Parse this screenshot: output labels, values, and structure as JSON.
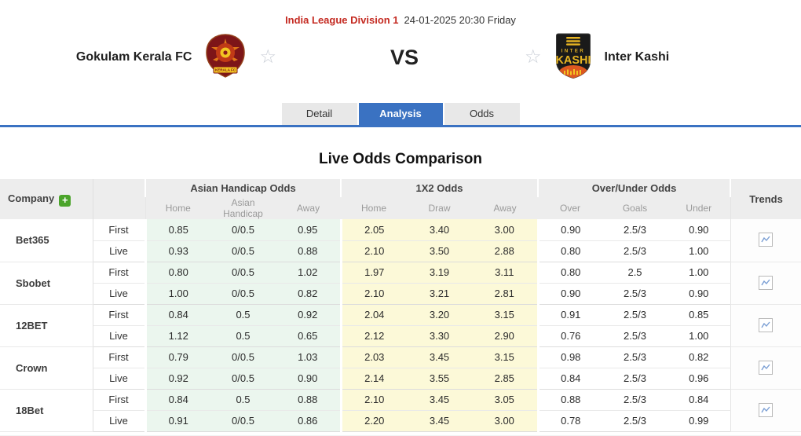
{
  "header": {
    "league": "India League Division 1",
    "datetime": "24-01-2025 20:30 Friday",
    "home_team": "Gokulam Kerala FC",
    "away_team": "Inter Kashi",
    "vs_label": "VS",
    "home_logo_text": "KERALA FC",
    "away_logo_line1": "INTER",
    "away_logo_line2": "KASHI"
  },
  "tabs": [
    {
      "label": "Detail",
      "active": false
    },
    {
      "label": "Analysis",
      "active": true
    },
    {
      "label": "Odds",
      "active": false
    }
  ],
  "section_title": "Live Odds Comparison",
  "odds_table": {
    "company_header": "Company",
    "add_company_label": "+",
    "trends_header": "Trends",
    "trends_icon": "line-chart",
    "row_types": [
      "First",
      "Live"
    ],
    "groups": [
      {
        "label": "Asian Handicap Odds",
        "columns": [
          "Home",
          "Asian Handicap",
          "Away"
        ]
      },
      {
        "label": "1X2 Odds",
        "columns": [
          "Home",
          "Draw",
          "Away"
        ]
      },
      {
        "label": "Over/Under Odds",
        "columns": [
          "Over",
          "Goals",
          "Under"
        ]
      }
    ],
    "companies": [
      {
        "name": "Bet365",
        "first": {
          "asian_handicap": [
            "0.85",
            "0/0.5",
            "0.95"
          ],
          "x12": [
            "2.05",
            "3.40",
            "3.00"
          ],
          "over_under": [
            "0.90",
            "2.5/3",
            "0.90"
          ]
        },
        "live": {
          "asian_handicap": [
            "0.93",
            "0/0.5",
            "0.88"
          ],
          "x12": [
            "2.10",
            "3.50",
            "2.88"
          ],
          "over_under": [
            "0.80",
            "2.5/3",
            "1.00"
          ]
        }
      },
      {
        "name": "Sbobet",
        "first": {
          "asian_handicap": [
            "0.80",
            "0/0.5",
            "1.02"
          ],
          "x12": [
            "1.97",
            "3.19",
            "3.11"
          ],
          "over_under": [
            "0.80",
            "2.5",
            "1.00"
          ]
        },
        "live": {
          "asian_handicap": [
            "1.00",
            "0/0.5",
            "0.82"
          ],
          "x12": [
            "2.10",
            "3.21",
            "2.81"
          ],
          "over_under": [
            "0.90",
            "2.5/3",
            "0.90"
          ]
        }
      },
      {
        "name": "12BET",
        "first": {
          "asian_handicap": [
            "0.84",
            "0.5",
            "0.92"
          ],
          "x12": [
            "2.04",
            "3.20",
            "3.15"
          ],
          "over_under": [
            "0.91",
            "2.5/3",
            "0.85"
          ]
        },
        "live": {
          "asian_handicap": [
            "1.12",
            "0.5",
            "0.65"
          ],
          "x12": [
            "2.12",
            "3.30",
            "2.90"
          ],
          "over_under": [
            "0.76",
            "2.5/3",
            "1.00"
          ]
        }
      },
      {
        "name": "Crown",
        "first": {
          "asian_handicap": [
            "0.79",
            "0/0.5",
            "1.03"
          ],
          "x12": [
            "2.03",
            "3.45",
            "3.15"
          ],
          "over_under": [
            "0.98",
            "2.5/3",
            "0.82"
          ]
        },
        "live": {
          "asian_handicap": [
            "0.92",
            "0/0.5",
            "0.90"
          ],
          "x12": [
            "2.14",
            "3.55",
            "2.85"
          ],
          "over_under": [
            "0.84",
            "2.5/3",
            "0.96"
          ]
        }
      },
      {
        "name": "18Bet",
        "first": {
          "asian_handicap": [
            "0.84",
            "0.5",
            "0.88"
          ],
          "x12": [
            "2.10",
            "3.45",
            "3.05"
          ],
          "over_under": [
            "0.88",
            "2.5/3",
            "0.84"
          ]
        },
        "live": {
          "asian_handicap": [
            "0.91",
            "0/0.5",
            "0.86"
          ],
          "x12": [
            "2.20",
            "3.45",
            "3.00"
          ],
          "over_under": [
            "0.78",
            "2.5/3",
            "0.99"
          ]
        }
      }
    ]
  },
  "colors": {
    "accent_blue": "#3a72c2",
    "league_red": "#c42a21",
    "asian_handicap_bg": "#ebf6ee",
    "x12_bg": "#fcf9d8",
    "add_button_green": "#4ba42b",
    "home_logo_maroon": "#7d1518",
    "away_logo_black": "#1a1a1a",
    "away_logo_yellow": "#e8b523",
    "away_logo_orange": "#dd5820"
  }
}
